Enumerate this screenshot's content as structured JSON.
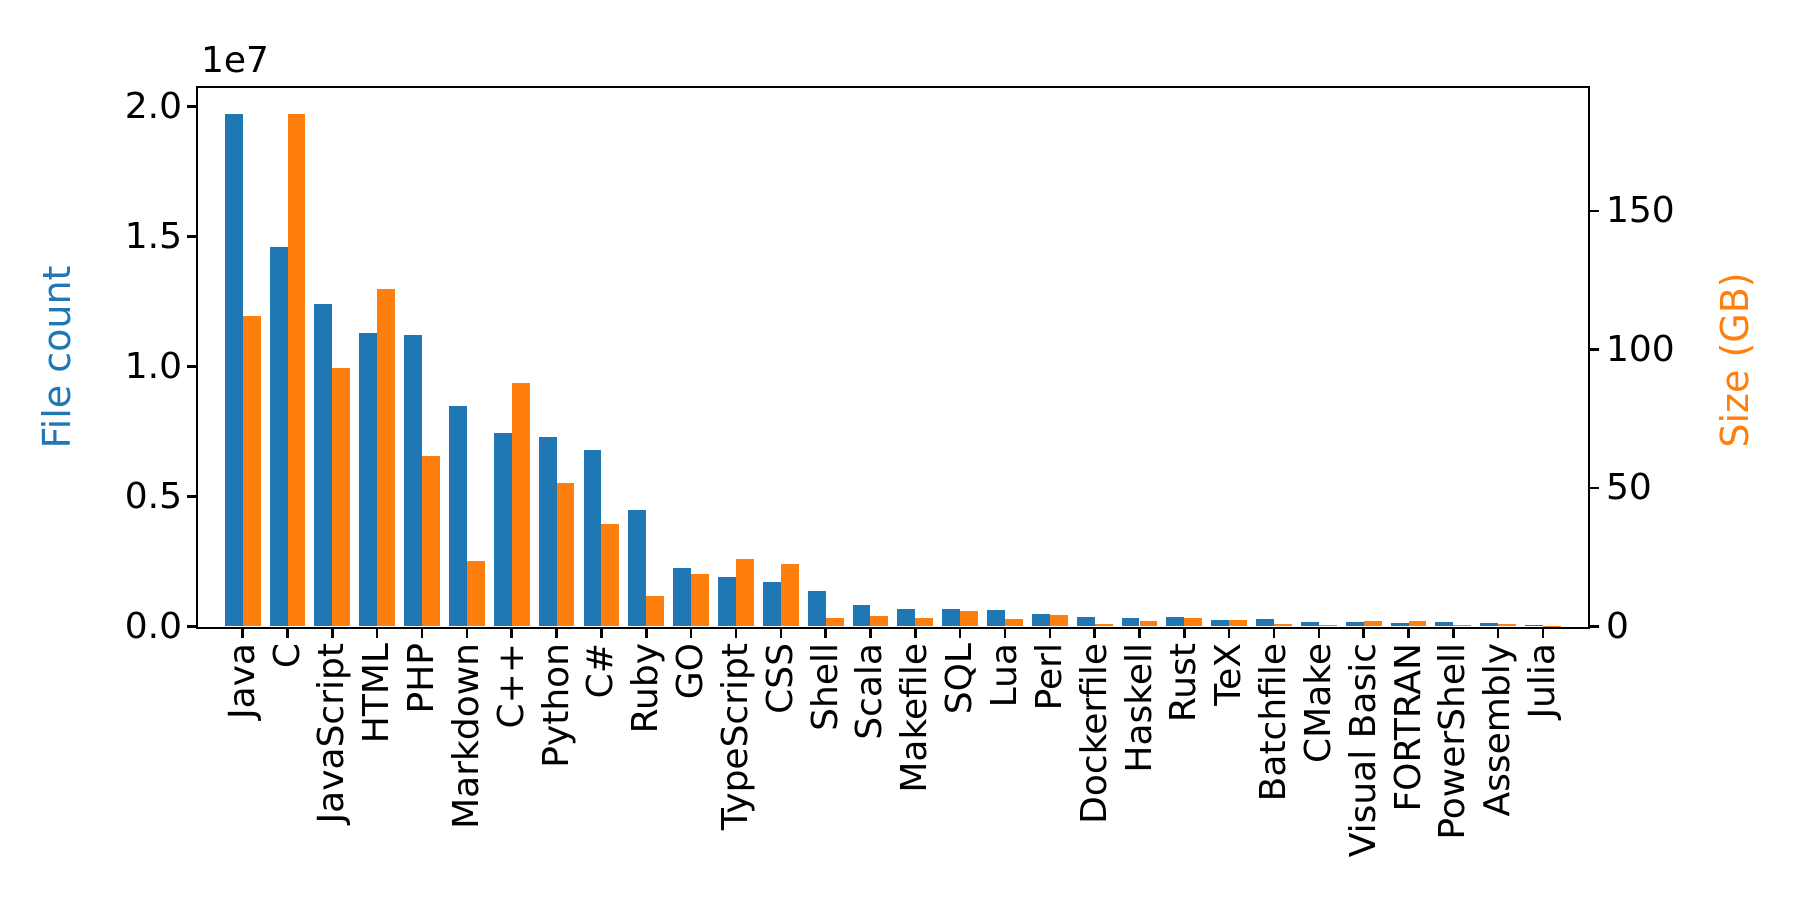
{
  "figure": {
    "background": "#ffffff",
    "offset_text": "1e7"
  },
  "axes": {
    "left": {
      "label": "File count",
      "color": "#1f77b4",
      "tick_labels": [
        "0.0",
        "0.5",
        "1.0",
        "1.5",
        "2.0"
      ],
      "tick_values": [
        0,
        5000000,
        10000000,
        15000000,
        20000000
      ]
    },
    "right": {
      "label": "Size (GB)",
      "color": "#ff7f0e",
      "tick_labels": [
        "0",
        "50",
        "100",
        "150"
      ],
      "tick_values": [
        0,
        50,
        100,
        150
      ]
    }
  },
  "chart_data": {
    "type": "bar",
    "title": "",
    "xlabel": "",
    "grid": false,
    "legend": "none",
    "categories": [
      "Java",
      "C",
      "JavaScript",
      "HTML",
      "PHP",
      "Markdown",
      "C++",
      "Python",
      "C#",
      "Ruby",
      "GO",
      "TypeScript",
      "CSS",
      "Shell",
      "Scala",
      "Makefile",
      "SQL",
      "Lua",
      "Perl",
      "Dockerfile",
      "Haskell",
      "Rust",
      "TeX",
      "Batchfile",
      "CMake",
      "Visual Basic",
      "FORTRAN",
      "PowerShell",
      "Assembly",
      "Julia"
    ],
    "series": [
      {
        "name": "File count",
        "axis": "left",
        "color": "#1f77b4",
        "values": [
          19700000,
          14600000,
          12400000,
          11300000,
          11200000,
          8500000,
          7450000,
          7300000,
          6800000,
          4470000,
          2260000,
          1910000,
          1720000,
          1380000,
          820000,
          680000,
          670000,
          620000,
          500000,
          360000,
          335000,
          360000,
          260000,
          280000,
          180000,
          180000,
          130000,
          180000,
          120000,
          55000
        ]
      },
      {
        "name": "Size (GB)",
        "axis": "right",
        "color": "#ff7f0e",
        "values": [
          112,
          185,
          93.5,
          122,
          61.5,
          23.5,
          88,
          52,
          37,
          11,
          19,
          24.5,
          22.5,
          3.0,
          3.7,
          3.0,
          5.5,
          2.8,
          4.3,
          0.8,
          1.9,
          3.0,
          2.2,
          0.9,
          0.6,
          2.0,
          1.9,
          0.4,
          0.8,
          0.3
        ]
      }
    ],
    "ylim_left": [
      0,
      20700000
    ],
    "ylim_right": [
      0,
      194.3
    ]
  }
}
